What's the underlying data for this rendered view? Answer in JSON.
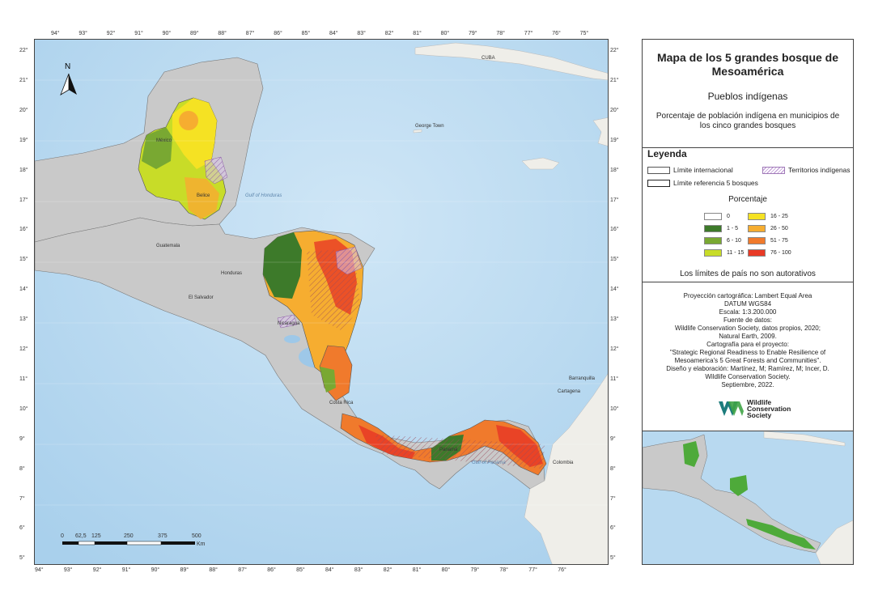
{
  "map": {
    "lon_ticks_top": [
      "94°",
      "93°",
      "92°",
      "91°",
      "90°",
      "89°",
      "88°",
      "87°",
      "86°",
      "85°",
      "84°",
      "83°",
      "82°",
      "81°",
      "80°",
      "79°",
      "78°",
      "77°",
      "76°",
      "75°"
    ],
    "lon_ticks_bottom": [
      "94°",
      "93°",
      "92°",
      "91°",
      "90°",
      "89°",
      "88°",
      "87°",
      "86°",
      "85°",
      "84°",
      "83°",
      "82°",
      "81°",
      "80°",
      "79°",
      "78°",
      "77°",
      "76°"
    ],
    "lat_ticks": [
      "22°",
      "21°",
      "20°",
      "19°",
      "18°",
      "17°",
      "16°",
      "15°",
      "14°",
      "13°",
      "12°",
      "11°",
      "10°",
      "9°",
      "8°",
      "7°",
      "6°",
      "5°"
    ],
    "north_label": "N",
    "places": {
      "mexico": "México",
      "belice": "Belice",
      "guatemala": "Guatemala",
      "honduras": "Honduras",
      "el_salvador": "El Salvador",
      "nicaragua": "Nicaragua",
      "costa_rica": "Costa Rica",
      "panama": "Panamá",
      "colombia": "Colombia",
      "cuba": "CUBA",
      "george_town": "George Town",
      "gulf_honduras": "Gulf of Honduras",
      "gulf_panama": "Gulf of Panama",
      "barranquilla": "Barranquilla",
      "cartagena": "Cartagena"
    },
    "scale_labels": [
      "0",
      "62,5",
      "125",
      "250",
      "375",
      "500"
    ],
    "scale_unit": "Km"
  },
  "panel": {
    "title": "Mapa de los 5 grandes bosque de Mesoamérica",
    "subtitle": "Pueblos indígenas",
    "description": "Porcentaje de población indígena en municipios de los cinco grandes bosques",
    "legend": {
      "title": "Leyenda",
      "international": "Límite internacional",
      "indigenous": "Territorios indígenas",
      "reference": "Límite referencia 5 bosques",
      "percent_title": "Porcentaje",
      "classes": [
        {
          "label": "0",
          "color": "#ffffff"
        },
        {
          "label": "1 - 5",
          "color": "#3d7a2a"
        },
        {
          "label": "6 - 10",
          "color": "#79a832"
        },
        {
          "label": "11 - 15",
          "color": "#c8dc28"
        },
        {
          "label": "16 - 25",
          "color": "#f5e223"
        },
        {
          "label": "26 - 50",
          "color": "#f6ad30"
        },
        {
          "label": "51 - 75",
          "color": "#f07a2c"
        },
        {
          "label": "76 - 100",
          "color": "#e83a26"
        }
      ],
      "notice": "Los límites de país no son autorativos"
    },
    "credits": [
      "Proyección cartográfica: Lambert Equal Area",
      "DATUM WGS84",
      "Escala: 1:3.200.000",
      "Fuente de datos:",
      "Wildlife Conservation Society, datos propios, 2020;",
      "Natural Earth, 2009.",
      "Cartografía para el proyecto:",
      "\"Strategic Regional Readiness  to Enable Resilience of",
      "Mesoamerica's 5 Great Forests and Communities\".",
      "Diseño y elaboración: Martínez, M; Ramírez, M; Incer, D.",
      "Wildlife Conservation Society.",
      "Septiembre, 2022."
    ],
    "logo_text": [
      "Wildlife",
      "Conservation",
      "Society"
    ]
  },
  "colors": {
    "ocean": "#b8d9f0",
    "land_context": "#c9c9c9",
    "land_other": "#efeee9",
    "hatch": "#a07ab8"
  }
}
